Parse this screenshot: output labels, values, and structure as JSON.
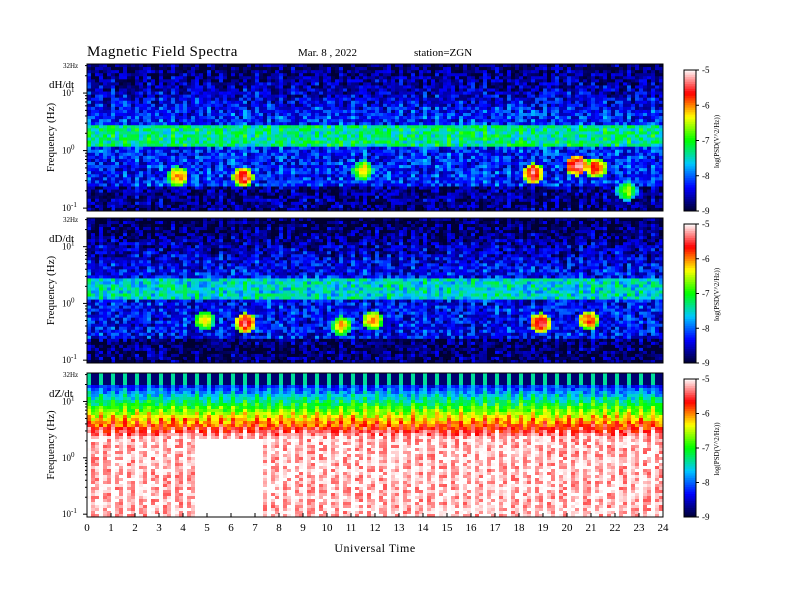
{
  "header": {
    "title": "Magnetic  Field  Spectra",
    "date": "Mar. 8  , 2022",
    "station": "station=ZGN"
  },
  "chart_data": {
    "type": "heatmap",
    "title": "Magnetic  Field  Spectra",
    "xlabel": "Universal  Time",
    "x_ticks": [
      "0",
      "1",
      "2",
      "3",
      "4",
      "5",
      "6",
      "7",
      "8",
      "9",
      "10",
      "11",
      "12",
      "13",
      "14",
      "15",
      "16",
      "17",
      "18",
      "19",
      "20",
      "21",
      "22",
      "23",
      "24"
    ],
    "xlim": [
      0,
      24
    ],
    "y_scale": "log",
    "colorbar": {
      "ticks": [
        "-5",
        "-6",
        "-7",
        "-8",
        "-9"
      ],
      "label": "log(PSD(V^2/Hz))",
      "range": [
        -9,
        -5
      ],
      "colors": [
        "#000033",
        "#0000ff",
        "#00c8ff",
        "#00ff00",
        "#ffff00",
        "#ff0000",
        "#ffffff"
      ]
    },
    "panels": [
      {
        "name": "dH/dt",
        "ylabel": "Frequency  (Hz)",
        "top_label": "32Hz",
        "y_ticks": [
          "10^1",
          "10^0",
          "10^-1"
        ],
        "background_level": -8.3,
        "band_level": -7.4,
        "events": [
          {
            "t": 3.8,
            "f": 0.35,
            "level": -6.0
          },
          {
            "t": 6.5,
            "f": 0.35,
            "level": -5.6
          },
          {
            "t": 11.5,
            "f": 0.45,
            "level": -6.3
          },
          {
            "t": 18.6,
            "f": 0.4,
            "level": -5.5
          },
          {
            "t": 20.4,
            "f": 0.55,
            "level": -5.3
          },
          {
            "t": 21.2,
            "f": 0.5,
            "level": -5.7
          },
          {
            "t": 22.5,
            "f": 0.2,
            "level": -6.6
          }
        ]
      },
      {
        "name": "dD/dt",
        "ylabel": "Frequency  (Hz)",
        "top_label": "32Hz",
        "y_ticks": [
          "10^1",
          "10^0",
          "10^-1"
        ],
        "background_level": -8.4,
        "band_level": -7.6,
        "events": [
          {
            "t": 4.9,
            "f": 0.5,
            "level": -6.3
          },
          {
            "t": 6.6,
            "f": 0.45,
            "level": -5.5
          },
          {
            "t": 10.6,
            "f": 0.4,
            "level": -6.2
          },
          {
            "t": 11.9,
            "f": 0.5,
            "level": -6.0
          },
          {
            "t": 18.9,
            "f": 0.45,
            "level": -5.5
          },
          {
            "t": 20.9,
            "f": 0.5,
            "level": -5.8
          }
        ]
      },
      {
        "name": "dZ/dt",
        "ylabel": "Frequency  (Hz)",
        "top_label": "32Hz",
        "y_ticks": [
          "10^1",
          "10^0",
          "10^-1"
        ],
        "background_level": -5.3,
        "band_level": -7.0,
        "events": []
      }
    ]
  }
}
